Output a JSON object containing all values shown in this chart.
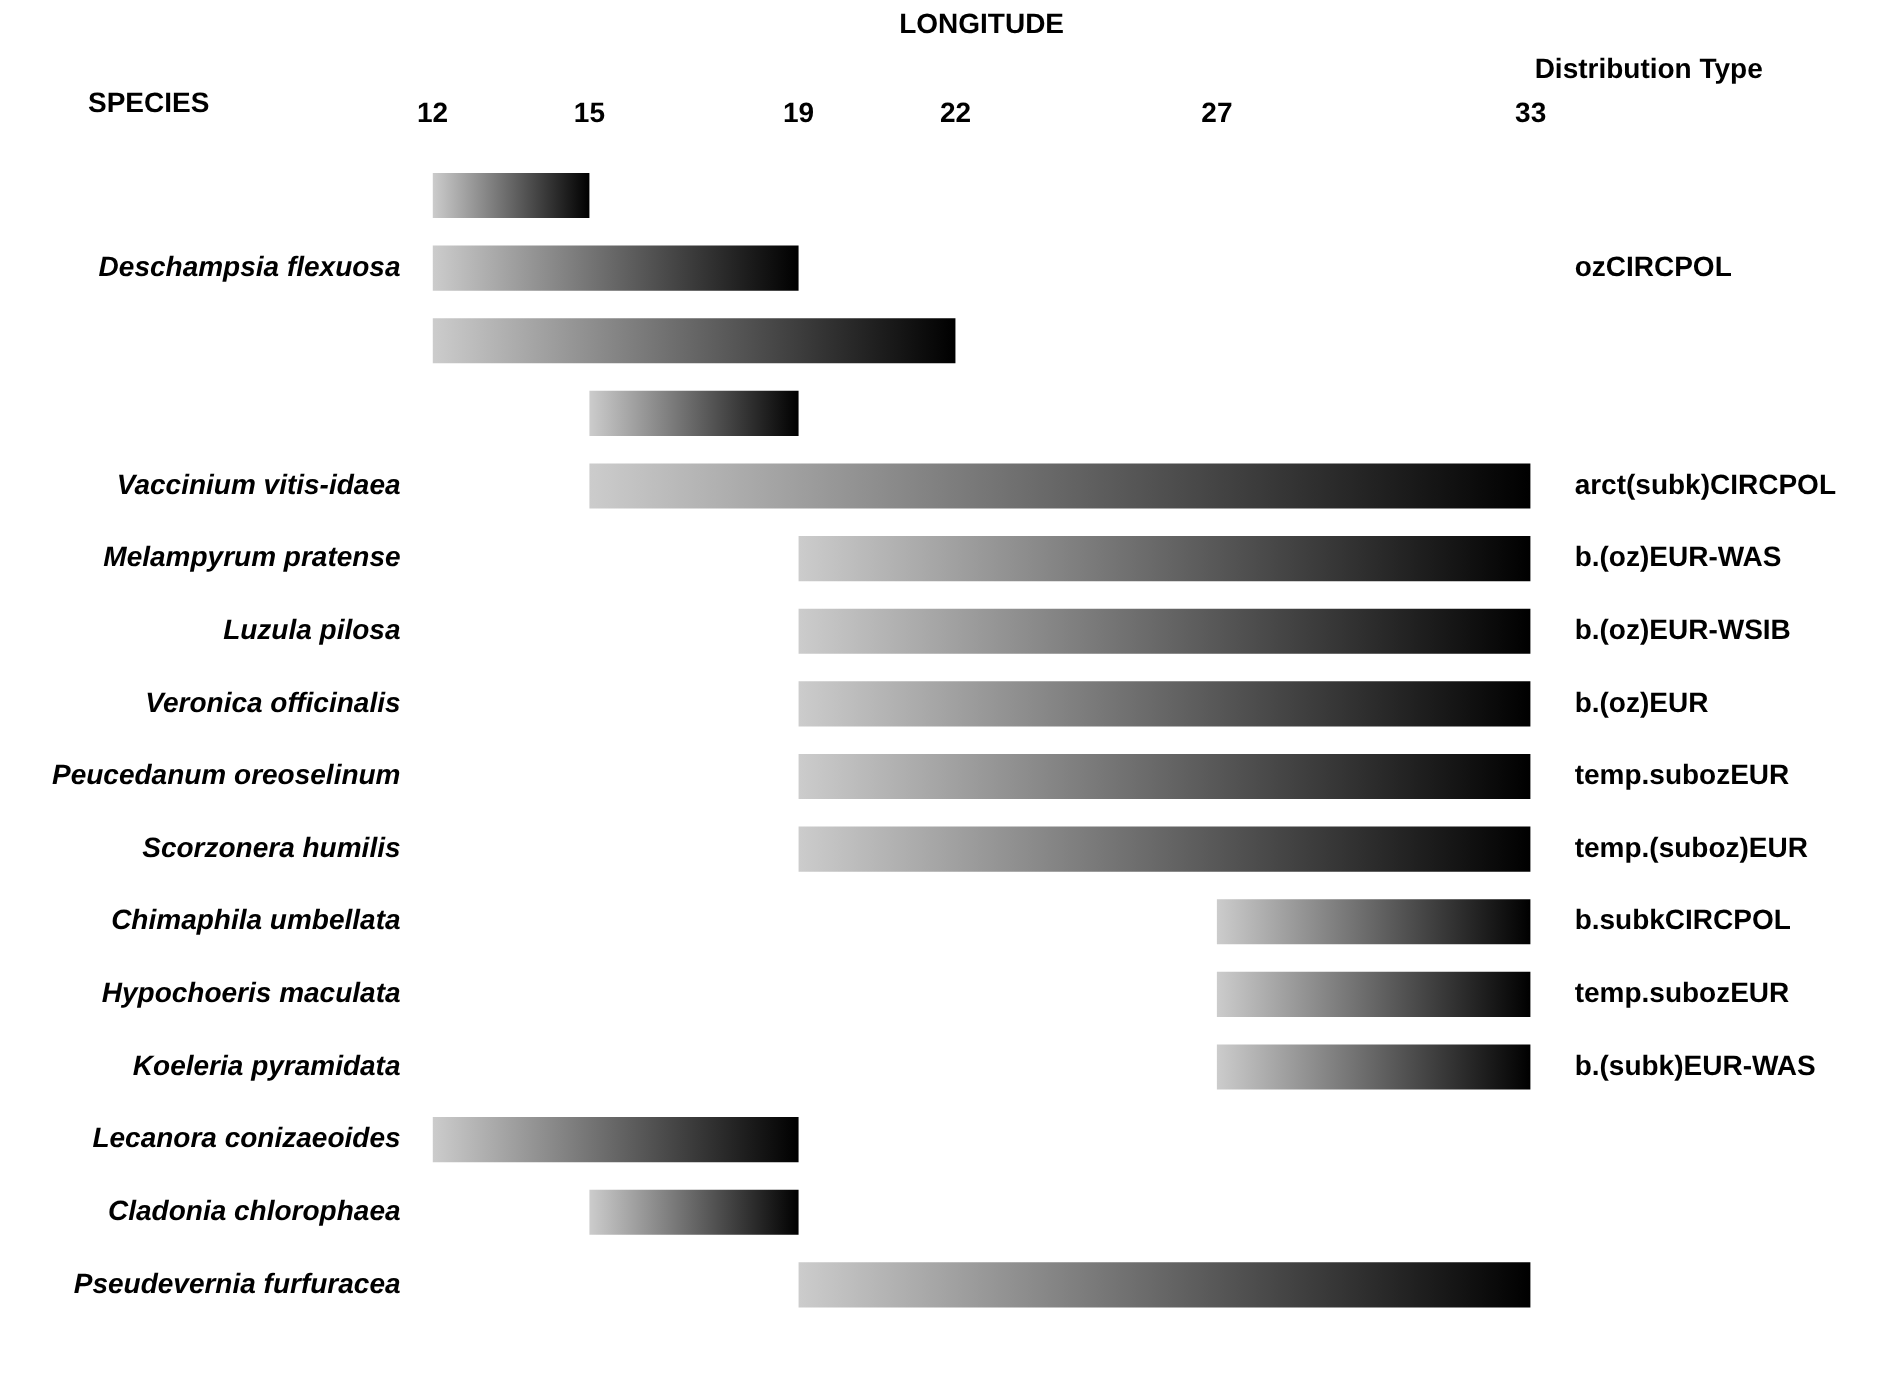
{
  "chart_data": {
    "type": "bar",
    "orientation": "horizontal",
    "xlabel": "LONGITUDE",
    "ylabel": "SPECIES",
    "y2label": "Distribution Type",
    "categories": [
      null,
      "Deschampsia flexuosa",
      null,
      null,
      "Vaccinium vitis-idaea",
      "Melampyrum pratense",
      "Luzula pilosa",
      "Veronica officinalis",
      "Peucedanum oreoselinum",
      "Scorzonera humilis",
      "Chimaphila umbellata",
      "Hypochoeris maculata",
      "Koeleria pyramidata",
      "Lecanora conizaeoides",
      "Cladonia chlorophaea",
      "Pseudevernia furfuracea"
    ],
    "y2_categories": [
      null,
      "ozCIRCPOL",
      null,
      null,
      "arct(subk)CIRCPOL",
      "b.(oz)EUR-WAS",
      "b.(oz)EUR-WSIB",
      "b.(oz)EUR",
      "temp.subozEUR",
      "temp.(suboz)EUR",
      "b.subkCIRCPOL",
      "temp.subozEUR",
      "b.(subk)EUR-WAS",
      null,
      null,
      null
    ],
    "series": [
      {
        "color": "#000000",
        "base": [
          12,
          12,
          12,
          15,
          15,
          19,
          19,
          19,
          19,
          19,
          27,
          27,
          27,
          12,
          15,
          19
        ],
        "values": [
          3,
          7,
          10,
          4,
          18,
          14,
          14,
          14,
          14,
          14,
          6,
          6,
          6,
          7,
          4,
          14
        ]
      }
    ],
    "xlim": [
      12,
      33
    ],
    "xticks": [
      12,
      15,
      19,
      22,
      27,
      33
    ],
    "grid": false,
    "legend": false
  }
}
